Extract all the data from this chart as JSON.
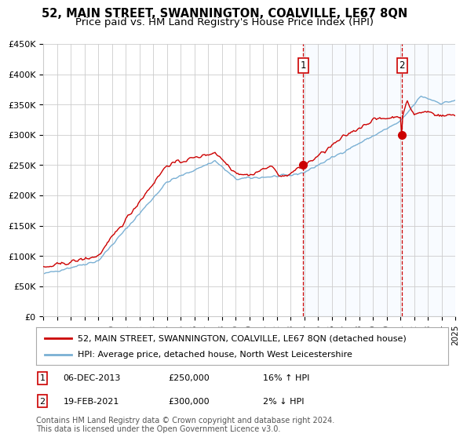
{
  "title": "52, MAIN STREET, SWANNINGTON, COALVILLE, LE67 8QN",
  "subtitle": "Price paid vs. HM Land Registry's House Price Index (HPI)",
  "ylim": [
    0,
    450000
  ],
  "yticks": [
    0,
    50000,
    100000,
    150000,
    200000,
    250000,
    300000,
    350000,
    400000,
    450000
  ],
  "ytick_labels": [
    "£0",
    "£50K",
    "£100K",
    "£150K",
    "£200K",
    "£250K",
    "£300K",
    "£350K",
    "£400K",
    "£450K"
  ],
  "xmin_year": 1995,
  "xmax_year": 2025,
  "xtick_years": [
    1995,
    1996,
    1997,
    1998,
    1999,
    2000,
    2001,
    2002,
    2003,
    2004,
    2005,
    2006,
    2007,
    2008,
    2009,
    2010,
    2011,
    2012,
    2013,
    2014,
    2015,
    2016,
    2017,
    2018,
    2019,
    2020,
    2021,
    2022,
    2023,
    2024,
    2025
  ],
  "red_line_color": "#cc0000",
  "blue_line_color": "#7ab0d4",
  "shade_color": "#ddeeff",
  "vline_color": "#cc0000",
  "annotation_box_color": "#cc0000",
  "background_color": "#ffffff",
  "grid_color": "#cccccc",
  "transaction1": {
    "date_label": "06-DEC-2013",
    "year": 2013.92,
    "price": 250000,
    "label": "1",
    "hpi_pct": "16% ↑ HPI"
  },
  "transaction2": {
    "date_label": "19-FEB-2021",
    "year": 2021.12,
    "price": 300000,
    "label": "2",
    "hpi_pct": "2% ↓ HPI"
  },
  "legend1": "52, MAIN STREET, SWANNINGTON, COALVILLE, LE67 8QN (detached house)",
  "legend2": "HPI: Average price, detached house, North West Leicestershire",
  "footer": "Contains HM Land Registry data © Crown copyright and database right 2024.\nThis data is licensed under the Open Government Licence v3.0.",
  "title_fontsize": 10.5,
  "subtitle_fontsize": 9.5,
  "tick_fontsize": 8,
  "legend_fontsize": 8,
  "footer_fontsize": 7
}
